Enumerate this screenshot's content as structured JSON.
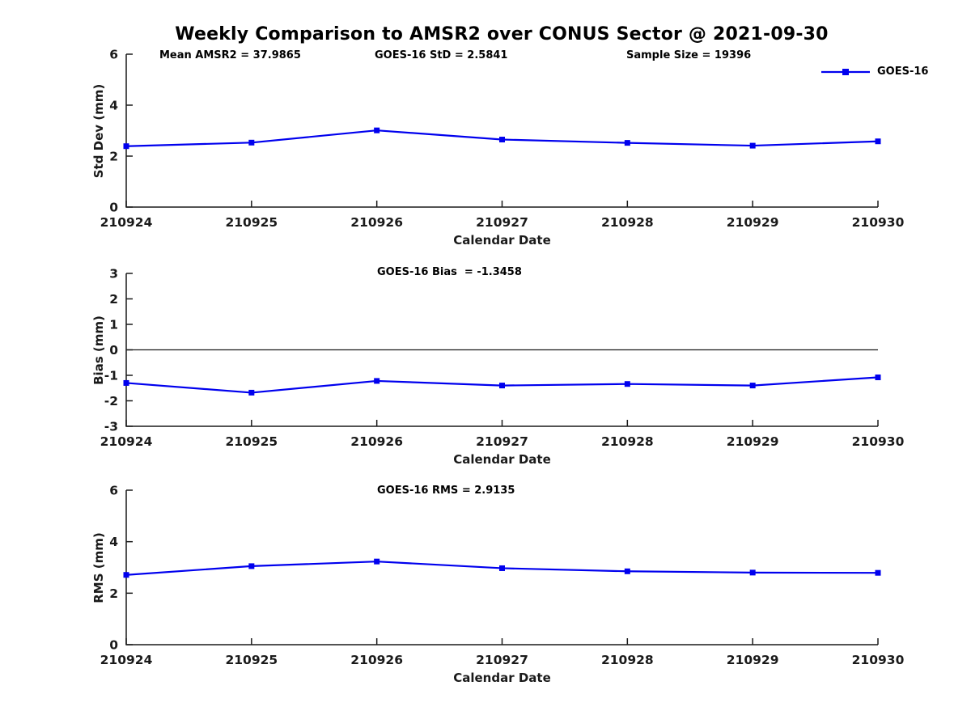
{
  "title": "Weekly Comparison to AMSR2 over CONUS Sector @ 2021-09-30",
  "legend": {
    "label": "GOES-16"
  },
  "colors": {
    "line": "#0000ee",
    "axis": "#1a1a1a",
    "text": "#1a1a1a"
  },
  "chart_data": [
    {
      "type": "line",
      "panel": "std-dev",
      "title_annotations": [
        "Mean AMSR2 = 37.9865",
        "GOES-16 StD = 2.5841",
        "Sample Size = 19396"
      ],
      "x": [
        "210924",
        "210925",
        "210926",
        "210927",
        "210928",
        "210929",
        "210930"
      ],
      "series": [
        {
          "name": "GOES-16",
          "marker": "square",
          "color": "#0000ee",
          "values": [
            2.39,
            2.53,
            3.01,
            2.65,
            2.52,
            2.41,
            2.58
          ]
        }
      ],
      "xlabel": "Calendar Date",
      "ylabel": "Std Dev (mm)",
      "ylim": [
        0,
        6
      ],
      "yticks": [
        0,
        2,
        4,
        6
      ],
      "grid": false,
      "legend_position": "top-right"
    },
    {
      "type": "line",
      "panel": "bias",
      "title_annotations": [
        "GOES-16 Bias  = -1.3458"
      ],
      "x": [
        "210924",
        "210925",
        "210926",
        "210927",
        "210928",
        "210929",
        "210930"
      ],
      "series": [
        {
          "name": "GOES-16",
          "marker": "square",
          "color": "#0000ee",
          "values": [
            -1.3,
            -1.68,
            -1.22,
            -1.4,
            -1.34,
            -1.4,
            -1.08
          ]
        }
      ],
      "xlabel": "Calendar Date",
      "ylabel": "Bias (mm)",
      "ylim": [
        -3,
        3
      ],
      "yticks": [
        3,
        2,
        1,
        0,
        -1,
        -2,
        -3
      ],
      "zero_line": true,
      "grid": false
    },
    {
      "type": "line",
      "panel": "rms",
      "title_annotations": [
        "GOES-16 RMS = 2.9135"
      ],
      "x": [
        "210924",
        "210925",
        "210926",
        "210927",
        "210928",
        "210929",
        "210930"
      ],
      "series": [
        {
          "name": "GOES-16",
          "marker": "square",
          "color": "#0000ee",
          "values": [
            2.71,
            3.05,
            3.23,
            2.97,
            2.85,
            2.8,
            2.79
          ]
        }
      ],
      "xlabel": "Calendar Date",
      "ylabel": "RMS (mm)",
      "ylim": [
        0,
        6
      ],
      "yticks": [
        0,
        2,
        4,
        6
      ],
      "grid": false
    }
  ]
}
